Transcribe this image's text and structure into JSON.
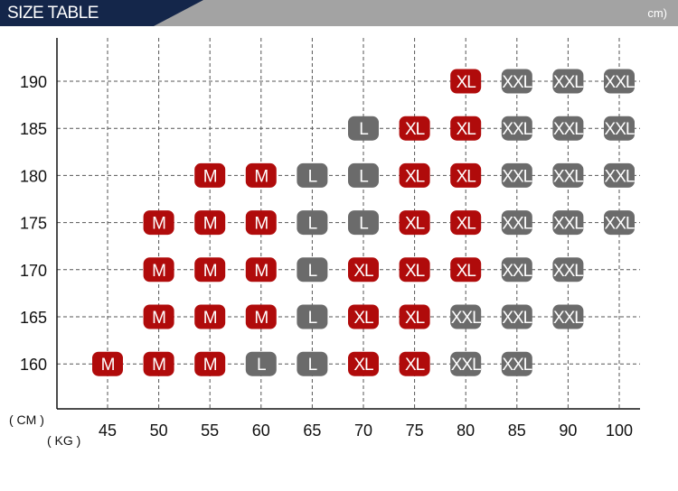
{
  "header": {
    "title": "SIZE TABLE",
    "unit": "cm)"
  },
  "colors": {
    "header_dark": "#14264a",
    "header_gray": "#a3a3a3",
    "red": "#b00b0b",
    "gray": "#6b6b6b",
    "M": "#b00b0b",
    "L": "#6b6b6b",
    "XL": "#b00b0b",
    "XXL": "#6b6b6b"
  },
  "chart_data": {
    "type": "table",
    "ylabel": "( CM )",
    "xlabel": "( KG )",
    "x_ticks": [
      "45",
      "50",
      "55",
      "60",
      "65",
      "70",
      "75",
      "80",
      "85",
      "90",
      "100"
    ],
    "y_ticks": [
      "190",
      "185",
      "180",
      "175",
      "170",
      "165",
      "160"
    ],
    "grid": true,
    "rows": [
      {
        "height": "190",
        "cells": {
          "80": "XL",
          "85": "XXL",
          "90": "XXL",
          "100": "XXL"
        }
      },
      {
        "height": "185",
        "cells": {
          "70": "L",
          "75": "XL",
          "80": "XL",
          "85": "XXL",
          "90": "XXL",
          "100": "XXL"
        }
      },
      {
        "height": "180",
        "cells": {
          "55": "M",
          "60": "M",
          "65": "L",
          "70": "L",
          "75": "XL",
          "80": "XL",
          "85": "XXL",
          "90": "XXL",
          "100": "XXL"
        }
      },
      {
        "height": "175",
        "cells": {
          "50": "M",
          "55": "M",
          "60": "M",
          "65": "L",
          "70": "L",
          "75": "XL",
          "80": "XL",
          "85": "XXL",
          "90": "XXL",
          "100": "XXL"
        }
      },
      {
        "height": "170",
        "cells": {
          "50": "M",
          "55": "M",
          "60": "M",
          "65": "L",
          "70": "XL",
          "75": "XL",
          "80": "XL",
          "85": "XXL",
          "90": "XXL"
        }
      },
      {
        "height": "165",
        "cells": {
          "50": "M",
          "55": "M",
          "60": "M",
          "65": "L",
          "70": "XL",
          "75": "XL",
          "80": "XXL",
          "85": "XXL",
          "90": "XXL"
        }
      },
      {
        "height": "160",
        "cells": {
          "45": "M",
          "50": "M",
          "55": "M",
          "60": "L",
          "65": "L",
          "70": "XL",
          "75": "XL",
          "80": "XXL",
          "85": "XXL"
        }
      }
    ]
  }
}
